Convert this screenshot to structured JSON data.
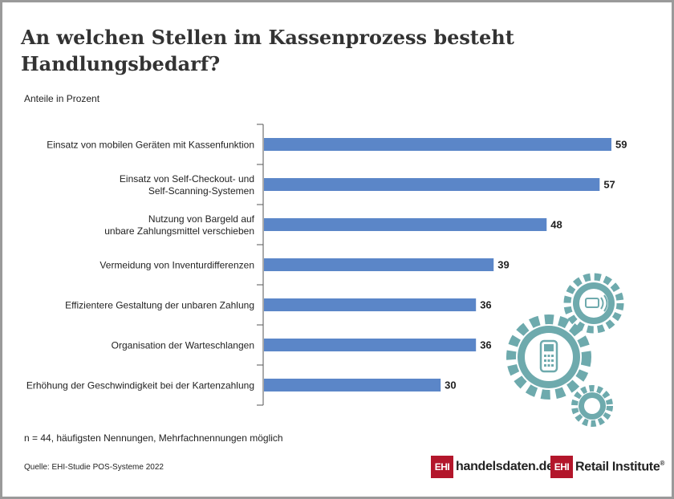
{
  "title": "An welchen Stellen im Kassenprozess besteht Handlungsbedarf?",
  "subtitle": "Anteile in Prozent",
  "footnote": "n = 44, häufigsten Nennungen, Mehrfachnennungen möglich",
  "source": "Quelle: EHI-Studie POS-Systeme 2022",
  "logos": [
    {
      "box": "EHI",
      "text": "handelsdaten.de"
    },
    {
      "box": "EHI",
      "text": "Retail Institute",
      "mark": "®"
    }
  ],
  "colors": {
    "bar": "#5b86c8",
    "gear": "#6eaaad",
    "axis": "#555555",
    "brand": "#b3162b"
  },
  "icons": [
    "gear-contactless-icon",
    "gear-card-terminal-icon",
    "gear-small-icon"
  ],
  "chart_data": {
    "type": "bar",
    "orientation": "horizontal",
    "xlim": [
      0,
      59
    ],
    "categories": [
      [
        "Einsatz von mobilen Geräten mit Kassenfunktion"
      ],
      [
        "Einsatz von Self-Checkout- und",
        "Self-Scanning-Systemen"
      ],
      [
        "Nutzung von Bargeld auf",
        "unbare Zahlungsmittel verschieben"
      ],
      [
        "Vermeidung von Inventurdifferenzen"
      ],
      [
        "Effizientere Gestaltung der unbaren Zahlung"
      ],
      [
        "Organisation der Warteschlangen"
      ],
      [
        "Erhöhung der Geschwindigkeit bei der Kartenzahlung"
      ]
    ],
    "values": [
      59,
      57,
      48,
      39,
      36,
      36,
      30
    ]
  }
}
